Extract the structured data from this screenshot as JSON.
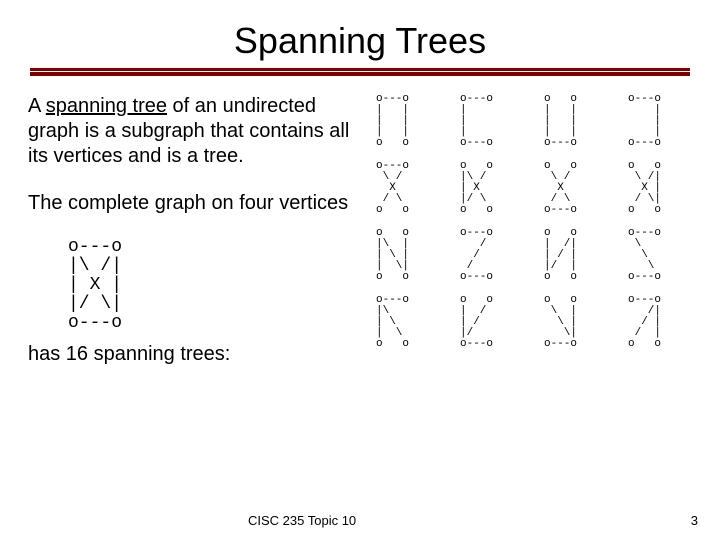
{
  "title": "Spanning Trees",
  "para1_pre": "A ",
  "para1_term": "spanning tree",
  "para1_post": " of an undirected graph is a subgraph that contains all its vertices and is a tree.",
  "para2": "The complete graph on four vertices",
  "k4": "o---o\n|\\ /|\n| X |\n|/ \\|\no---o",
  "para3": "has 16 spanning trees:",
  "course": "CISC 235 Topic 10",
  "slide_number": "3",
  "trees": {
    "t0": "o---o\n|   |\n|   |\n|   |\no   o",
    "t1": "o---o\n|\n|\n|\no---o",
    "t2": "o   o\n|   |\n|   |\n|   |\no---o",
    "t3": "o---o\n    |\n    |\n    |\no---o",
    "t4": "o---o\n \\ /\n  X\n / \\\no   o",
    "t5": "o   o\n|\\ /\n| X\n|/ \\\no   o",
    "t6": "o   o\n \\ /\n  X\n / \\\no---o",
    "t7": "o   o\n \\ /|\n  X |\n / \\|\no   o",
    "t8": "o   o\n|\\  |\n| \\ |\n|  \\|\no   o",
    "t9": "o---o\n   /\n  /\n /\no---o",
    "t10": "o   o\n|  /|\n| / |\n|/  |\no   o",
    "t11": "o---o\n \\\n  \\\n   \\\no---o",
    "t12": "o---o\n|\\\n| \\\n|  \\\no   o",
    "t13": "o   o\n|  /\n| /\n|/\no---o",
    "t14": "o   o\n \\  |\n  \\ |\n   \\|\no---o",
    "t15": "o---o\n   /|\n  / |\n /  |\no   o"
  }
}
